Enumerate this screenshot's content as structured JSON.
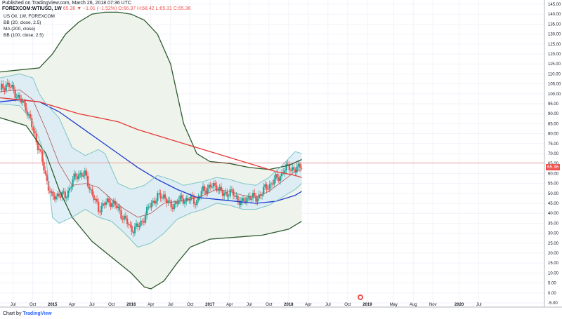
{
  "header": {
    "published": "Published on TradingView.com, March 26, 2018 07:36 UTC",
    "symbol": "FOREXCOM:WTIUSD, 1W",
    "ohlc": "65.36 ▼ −1.01 (−1.52%) O:66.37 H:68.42 L:65.31 C:65.36",
    "indicators": [
      "US Oil, 1W, FOREXCOM",
      "BB (20, close, 2.5)",
      "MA (200, close)",
      "BB (100, close, 2.5)"
    ]
  },
  "price_tag": "65.36",
  "footer": {
    "logo_prefix": "Chart by",
    "logo_brand": "TradingView"
  },
  "colors": {
    "up": "#26a69a",
    "down": "#ef5350",
    "bb20": "#7fc4c7",
    "bb20_fill": "#d7ebf5",
    "ma200": "#e53935",
    "bb100": "#2e5a2e",
    "bb100_fill": "#eef3ec",
    "bb100_mid": "#1e3ccf",
    "bb20_mid": "#b05555",
    "price_line": "#ef5350"
  },
  "chart_data": {
    "type": "candlestick",
    "title": "US Oil, 1W, FOREXCOM",
    "ylim": [
      -5,
      145
    ],
    "yticks": [
      -5,
      0,
      5,
      10,
      15,
      20,
      25,
      30,
      35,
      40,
      45,
      50,
      55,
      60,
      65,
      70,
      75,
      80,
      85,
      90,
      95,
      100,
      105,
      110,
      115,
      120,
      125,
      130,
      135,
      140,
      145
    ],
    "time_range": [
      "2014-05",
      "2021-04"
    ],
    "xticks": [
      {
        "t": "2014-07",
        "label": "Jul"
      },
      {
        "t": "2014-10",
        "label": "Oct"
      },
      {
        "t": "2015-01",
        "label": "2015"
      },
      {
        "t": "2015-04",
        "label": "Apr"
      },
      {
        "t": "2015-07",
        "label": "Jul"
      },
      {
        "t": "2015-10",
        "label": "Oct"
      },
      {
        "t": "2016-01",
        "label": "2016"
      },
      {
        "t": "2016-04",
        "label": "Apr"
      },
      {
        "t": "2016-07",
        "label": "Jul"
      },
      {
        "t": "2016-10",
        "label": "Oct"
      },
      {
        "t": "2017-01",
        "label": "2017"
      },
      {
        "t": "2017-04",
        "label": "Apr"
      },
      {
        "t": "2017-07",
        "label": "Jul"
      },
      {
        "t": "2017-10",
        "label": "Oct"
      },
      {
        "t": "2018-01",
        "label": "2018"
      },
      {
        "t": "2018-04",
        "label": "Apr"
      },
      {
        "t": "2018-07",
        "label": "Jul"
      },
      {
        "t": "2018-10",
        "label": "Oct"
      },
      {
        "t": "2019-01",
        "label": "2019"
      },
      {
        "t": "2019-05",
        "label": "May"
      },
      {
        "t": "2019-08",
        "label": "Aug"
      },
      {
        "t": "2019-11",
        "label": "Nov"
      },
      {
        "t": "2020-03",
        "label": "2020"
      },
      {
        "t": "2020-06",
        "label": "Jul"
      }
    ],
    "price_close": [
      {
        "t": "2014-05",
        "v": 102
      },
      {
        "t": "2014-06",
        "v": 105
      },
      {
        "t": "2014-07",
        "v": 102
      },
      {
        "t": "2014-08",
        "v": 97
      },
      {
        "t": "2014-09",
        "v": 93
      },
      {
        "t": "2014-10",
        "v": 82
      },
      {
        "t": "2014-11",
        "v": 72
      },
      {
        "t": "2014-12",
        "v": 58
      },
      {
        "t": "2015-01",
        "v": 47
      },
      {
        "t": "2015-02",
        "v": 50
      },
      {
        "t": "2015-03",
        "v": 48
      },
      {
        "t": "2015-04",
        "v": 56
      },
      {
        "t": "2015-05",
        "v": 60
      },
      {
        "t": "2015-06",
        "v": 59
      },
      {
        "t": "2015-07",
        "v": 50
      },
      {
        "t": "2015-08",
        "v": 42
      },
      {
        "t": "2015-09",
        "v": 45
      },
      {
        "t": "2015-10",
        "v": 46
      },
      {
        "t": "2015-11",
        "v": 42
      },
      {
        "t": "2015-12",
        "v": 37
      },
      {
        "t": "2016-01",
        "v": 32
      },
      {
        "t": "2016-02",
        "v": 33
      },
      {
        "t": "2016-03",
        "v": 38
      },
      {
        "t": "2016-04",
        "v": 45
      },
      {
        "t": "2016-05",
        "v": 48
      },
      {
        "t": "2016-06",
        "v": 49
      },
      {
        "t": "2016-07",
        "v": 43
      },
      {
        "t": "2016-08",
        "v": 46
      },
      {
        "t": "2016-09",
        "v": 47
      },
      {
        "t": "2016-10",
        "v": 47
      },
      {
        "t": "2016-11",
        "v": 46
      },
      {
        "t": "2016-12",
        "v": 52
      },
      {
        "t": "2017-01",
        "v": 53
      },
      {
        "t": "2017-02",
        "v": 54
      },
      {
        "t": "2017-03",
        "v": 49
      },
      {
        "t": "2017-04",
        "v": 51
      },
      {
        "t": "2017-05",
        "v": 48
      },
      {
        "t": "2017-06",
        "v": 45
      },
      {
        "t": "2017-07",
        "v": 49
      },
      {
        "t": "2017-08",
        "v": 47
      },
      {
        "t": "2017-09",
        "v": 51
      },
      {
        "t": "2017-10",
        "v": 54
      },
      {
        "t": "2017-11",
        "v": 57
      },
      {
        "t": "2017-12",
        "v": 60
      },
      {
        "t": "2018-01",
        "v": 64
      },
      {
        "t": "2018-02",
        "v": 61
      },
      {
        "t": "2018-03",
        "v": 65.36
      }
    ],
    "series": [
      {
        "name": "BB (20, close, 2.5) upper",
        "points": [
          {
            "t": "2014-05",
            "v": 108
          },
          {
            "t": "2014-08",
            "v": 110
          },
          {
            "t": "2014-10",
            "v": 108
          },
          {
            "t": "2014-11",
            "v": 100
          },
          {
            "t": "2014-12",
            "v": 95
          },
          {
            "t": "2015-02",
            "v": 88
          },
          {
            "t": "2015-04",
            "v": 73
          },
          {
            "t": "2015-06",
            "v": 69
          },
          {
            "t": "2015-08",
            "v": 72
          },
          {
            "t": "2015-09",
            "v": 70
          },
          {
            "t": "2015-11",
            "v": 55
          },
          {
            "t": "2016-01",
            "v": 52
          },
          {
            "t": "2016-03",
            "v": 54
          },
          {
            "t": "2016-05",
            "v": 59
          },
          {
            "t": "2016-07",
            "v": 57
          },
          {
            "t": "2016-09",
            "v": 54
          },
          {
            "t": "2016-12",
            "v": 56
          },
          {
            "t": "2017-02",
            "v": 58
          },
          {
            "t": "2017-04",
            "v": 57
          },
          {
            "t": "2017-06",
            "v": 55
          },
          {
            "t": "2017-08",
            "v": 54
          },
          {
            "t": "2017-10",
            "v": 58
          },
          {
            "t": "2017-12",
            "v": 64
          },
          {
            "t": "2018-02",
            "v": 71
          },
          {
            "t": "2018-03",
            "v": 70
          }
        ]
      },
      {
        "name": "BB (20, close, 2.5) basis",
        "points": [
          {
            "t": "2014-05",
            "v": 101
          },
          {
            "t": "2014-08",
            "v": 102
          },
          {
            "t": "2014-10",
            "v": 97
          },
          {
            "t": "2014-12",
            "v": 82
          },
          {
            "t": "2015-02",
            "v": 65
          },
          {
            "t": "2015-04",
            "v": 54
          },
          {
            "t": "2015-06",
            "v": 55
          },
          {
            "t": "2015-08",
            "v": 53
          },
          {
            "t": "2015-10",
            "v": 47
          },
          {
            "t": "2015-12",
            "v": 42
          },
          {
            "t": "2016-02",
            "v": 38
          },
          {
            "t": "2016-04",
            "v": 40
          },
          {
            "t": "2016-06",
            "v": 45
          },
          {
            "t": "2016-08",
            "v": 46
          },
          {
            "t": "2016-10",
            "v": 47
          },
          {
            "t": "2016-12",
            "v": 49
          },
          {
            "t": "2017-02",
            "v": 52
          },
          {
            "t": "2017-04",
            "v": 51
          },
          {
            "t": "2017-06",
            "v": 49
          },
          {
            "t": "2017-08",
            "v": 48
          },
          {
            "t": "2017-10",
            "v": 51
          },
          {
            "t": "2017-12",
            "v": 56
          },
          {
            "t": "2018-02",
            "v": 61
          },
          {
            "t": "2018-03",
            "v": 62
          }
        ]
      },
      {
        "name": "BB (20, close, 2.5) lower",
        "points": [
          {
            "t": "2014-05",
            "v": 95
          },
          {
            "t": "2014-08",
            "v": 94
          },
          {
            "t": "2014-10",
            "v": 86
          },
          {
            "t": "2014-12",
            "v": 68
          },
          {
            "t": "2015-01",
            "v": 38
          },
          {
            "t": "2015-02",
            "v": 35
          },
          {
            "t": "2015-04",
            "v": 38
          },
          {
            "t": "2015-06",
            "v": 42
          },
          {
            "t": "2015-08",
            "v": 38
          },
          {
            "t": "2015-10",
            "v": 36
          },
          {
            "t": "2015-12",
            "v": 30
          },
          {
            "t": "2016-02",
            "v": 23
          },
          {
            "t": "2016-04",
            "v": 25
          },
          {
            "t": "2016-06",
            "v": 30
          },
          {
            "t": "2016-08",
            "v": 37
          },
          {
            "t": "2016-10",
            "v": 40
          },
          {
            "t": "2016-12",
            "v": 42
          },
          {
            "t": "2017-02",
            "v": 45
          },
          {
            "t": "2017-04",
            "v": 44
          },
          {
            "t": "2017-06",
            "v": 42
          },
          {
            "t": "2017-08",
            "v": 42
          },
          {
            "t": "2017-10",
            "v": 44
          },
          {
            "t": "2017-12",
            "v": 48
          },
          {
            "t": "2018-02",
            "v": 52
          },
          {
            "t": "2018-03",
            "v": 55
          }
        ]
      },
      {
        "name": "MA (200, close)",
        "points": [
          {
            "t": "2014-05",
            "v": 98
          },
          {
            "t": "2014-08",
            "v": 97
          },
          {
            "t": "2014-11",
            "v": 96
          },
          {
            "t": "2015-02",
            "v": 93
          },
          {
            "t": "2015-05",
            "v": 90
          },
          {
            "t": "2015-08",
            "v": 88
          },
          {
            "t": "2015-11",
            "v": 86
          },
          {
            "t": "2016-02",
            "v": 82
          },
          {
            "t": "2016-05",
            "v": 79
          },
          {
            "t": "2016-08",
            "v": 76
          },
          {
            "t": "2016-11",
            "v": 73
          },
          {
            "t": "2017-02",
            "v": 70
          },
          {
            "t": "2017-05",
            "v": 67
          },
          {
            "t": "2017-08",
            "v": 64
          },
          {
            "t": "2017-11",
            "v": 61
          },
          {
            "t": "2018-02",
            "v": 59
          },
          {
            "t": "2018-03",
            "v": 58
          }
        ]
      },
      {
        "name": "BB (100, close, 2.5) upper",
        "points": [
          {
            "t": "2014-05",
            "v": 111
          },
          {
            "t": "2014-08",
            "v": 112
          },
          {
            "t": "2014-11",
            "v": 113
          },
          {
            "t": "2015-01",
            "v": 120
          },
          {
            "t": "2015-03",
            "v": 130
          },
          {
            "t": "2015-05",
            "v": 136
          },
          {
            "t": "2015-07",
            "v": 140
          },
          {
            "t": "2015-09",
            "v": 141
          },
          {
            "t": "2015-11",
            "v": 141
          },
          {
            "t": "2016-01",
            "v": 140
          },
          {
            "t": "2016-03",
            "v": 137
          },
          {
            "t": "2016-05",
            "v": 130
          },
          {
            "t": "2016-07",
            "v": 115
          },
          {
            "t": "2016-09",
            "v": 85
          },
          {
            "t": "2016-11",
            "v": 70
          },
          {
            "t": "2017-01",
            "v": 66
          },
          {
            "t": "2017-04",
            "v": 65
          },
          {
            "t": "2017-07",
            "v": 63
          },
          {
            "t": "2017-10",
            "v": 62
          },
          {
            "t": "2018-01",
            "v": 64
          },
          {
            "t": "2018-03",
            "v": 67
          }
        ]
      },
      {
        "name": "BB (100, close, 2.5) basis",
        "points": [
          {
            "t": "2014-05",
            "v": 96
          },
          {
            "t": "2014-08",
            "v": 97
          },
          {
            "t": "2014-11",
            "v": 96
          },
          {
            "t": "2015-02",
            "v": 91
          },
          {
            "t": "2015-05",
            "v": 84
          },
          {
            "t": "2015-08",
            "v": 77
          },
          {
            "t": "2015-11",
            "v": 70
          },
          {
            "t": "2016-02",
            "v": 63
          },
          {
            "t": "2016-05",
            "v": 57
          },
          {
            "t": "2016-08",
            "v": 52
          },
          {
            "t": "2016-11",
            "v": 48
          },
          {
            "t": "2017-02",
            "v": 47
          },
          {
            "t": "2017-05",
            "v": 46
          },
          {
            "t": "2017-08",
            "v": 45
          },
          {
            "t": "2017-11",
            "v": 46
          },
          {
            "t": "2018-02",
            "v": 49
          },
          {
            "t": "2018-03",
            "v": 51
          }
        ]
      },
      {
        "name": "BB (100, close, 2.5) lower",
        "points": [
          {
            "t": "2014-05",
            "v": 88
          },
          {
            "t": "2014-09",
            "v": 84
          },
          {
            "t": "2014-12",
            "v": 70
          },
          {
            "t": "2015-02",
            "v": 52
          },
          {
            "t": "2015-04",
            "v": 38
          },
          {
            "t": "2015-07",
            "v": 26
          },
          {
            "t": "2015-10",
            "v": 18
          },
          {
            "t": "2016-01",
            "v": 10
          },
          {
            "t": "2016-03",
            "v": 3
          },
          {
            "t": "2016-04",
            "v": 2
          },
          {
            "t": "2016-06",
            "v": 6
          },
          {
            "t": "2016-08",
            "v": 15
          },
          {
            "t": "2016-10",
            "v": 23
          },
          {
            "t": "2017-01",
            "v": 27
          },
          {
            "t": "2017-05",
            "v": 28
          },
          {
            "t": "2017-09",
            "v": 29
          },
          {
            "t": "2018-01",
            "v": 32
          },
          {
            "t": "2018-03",
            "v": 36
          }
        ]
      }
    ]
  }
}
